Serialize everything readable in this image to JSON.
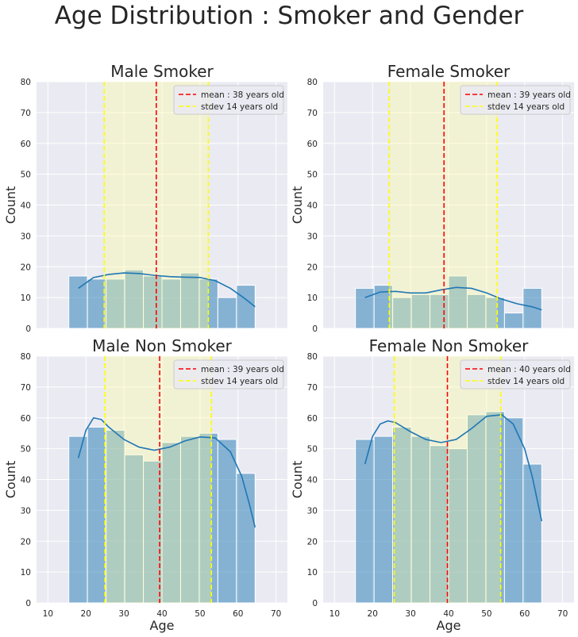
{
  "figure": {
    "title": "Age Distribution : Smoker and Gender"
  },
  "colors": {
    "hist": "#1f77b4",
    "kde": "#1f77b4",
    "mean_line": "#ff0000",
    "stdev_line": "#ffff00",
    "stdev_band": "#ffff9e",
    "axes_bg": "#eaeaf2",
    "grid": "#ffffff"
  },
  "chart_data": [
    {
      "type": "bar",
      "title": "Male Smoker",
      "xlabel": "",
      "ylabel": "Count",
      "xlim": [
        7,
        73
      ],
      "ylim": [
        0,
        80
      ],
      "xticks": [
        10,
        20,
        30,
        40,
        50,
        60,
        70
      ],
      "yticks": [
        0,
        10,
        20,
        30,
        40,
        50,
        60,
        70,
        80
      ],
      "show_xtick_labels": false,
      "bin_edges": [
        15.5,
        20.4,
        25.3,
        30.2,
        35.1,
        40.0,
        44.9,
        49.8,
        54.7,
        59.6,
        64.5
      ],
      "counts": [
        17,
        16,
        16,
        19,
        17,
        16,
        18,
        16,
        10,
        14
      ],
      "kde": {
        "x": [
          18,
          22,
          26,
          30,
          34,
          38,
          42,
          46,
          50,
          54,
          58,
          62,
          64.5
        ],
        "y": [
          13,
          16.5,
          17.5,
          18,
          17.8,
          17.2,
          16.8,
          16.6,
          16.5,
          15.5,
          13,
          9.5,
          7
        ]
      },
      "mean": 38.5,
      "stdev_low": 24.8,
      "stdev_high": 52.2,
      "legend": {
        "position": "upper-right",
        "mean_label": "mean : 38 years old",
        "stdev_label": "stdev 14 years old"
      },
      "grid": true
    },
    {
      "type": "bar",
      "title": "Female Smoker",
      "xlabel": "",
      "ylabel": "Count",
      "xlim": [
        7,
        73
      ],
      "ylim": [
        0,
        80
      ],
      "xticks": [
        10,
        20,
        30,
        40,
        50,
        60,
        70
      ],
      "yticks": [
        0,
        10,
        20,
        30,
        40,
        50,
        60,
        70,
        80
      ],
      "show_xtick_labels": false,
      "bin_edges": [
        15.5,
        20.4,
        25.3,
        30.2,
        35.1,
        40.0,
        44.9,
        49.8,
        54.7,
        59.6,
        64.5
      ],
      "counts": [
        13,
        14,
        10,
        11,
        11,
        17,
        11,
        10,
        5,
        13
      ],
      "kde": {
        "x": [
          18,
          22,
          26,
          30,
          34,
          38,
          42,
          46,
          50,
          54,
          58,
          62,
          64.5
        ],
        "y": [
          10,
          11.8,
          12,
          11.5,
          11.5,
          12.5,
          13.3,
          13,
          11.5,
          9.5,
          8,
          7,
          6
        ]
      },
      "mean": 38.8,
      "stdev_low": 24.4,
      "stdev_high": 52.8,
      "legend": {
        "position": "upper-right",
        "mean_label": "mean : 39 years old",
        "stdev_label": "stdev 14 years old"
      },
      "grid": true
    },
    {
      "type": "bar",
      "title": "Male Non Smoker",
      "xlabel": "Age",
      "ylabel": "Count",
      "xlim": [
        7,
        73
      ],
      "ylim": [
        0,
        80
      ],
      "xticks": [
        10,
        20,
        30,
        40,
        50,
        60,
        70
      ],
      "yticks": [
        0,
        10,
        20,
        30,
        40,
        50,
        60,
        70,
        80
      ],
      "show_xtick_labels": true,
      "bin_edges": [
        15.5,
        20.4,
        25.3,
        30.2,
        35.1,
        40.0,
        44.9,
        49.8,
        54.7,
        59.6,
        64.5
      ],
      "counts": [
        54,
        57,
        56,
        48,
        46,
        52,
        54,
        55,
        53,
        42
      ],
      "kde": {
        "x": [
          18,
          20,
          22,
          24,
          26,
          30,
          34,
          38,
          42,
          46,
          50,
          54,
          58,
          61,
          63,
          64.5
        ],
        "y": [
          47,
          56,
          60,
          59.5,
          57,
          53,
          50.5,
          49.5,
          50.5,
          52.5,
          53.8,
          53.5,
          49,
          41,
          32,
          24.5
        ]
      },
      "mean": 39.4,
      "stdev_low": 25.0,
      "stdev_high": 53.0,
      "legend": {
        "position": "upper-right",
        "mean_label": "mean : 39 years old",
        "stdev_label": "stdev 14 years old"
      },
      "grid": true
    },
    {
      "type": "bar",
      "title": "Female Non Smoker",
      "xlabel": "Age",
      "ylabel": "Count",
      "xlim": [
        7,
        73
      ],
      "ylim": [
        0,
        80
      ],
      "xticks": [
        10,
        20,
        30,
        40,
        50,
        60,
        70
      ],
      "yticks": [
        0,
        10,
        20,
        30,
        40,
        50,
        60,
        70,
        80
      ],
      "show_xtick_labels": true,
      "bin_edges": [
        15.5,
        20.4,
        25.3,
        30.2,
        35.1,
        40.0,
        44.9,
        49.8,
        54.7,
        59.6,
        64.5
      ],
      "counts": [
        53,
        54,
        57,
        54,
        51,
        50,
        61,
        62,
        60,
        45
      ],
      "kde": {
        "x": [
          18,
          20,
          22,
          24,
          26,
          30,
          34,
          38,
          42,
          46,
          50,
          54,
          57,
          60,
          62,
          64.5
        ],
        "y": [
          45,
          54,
          58,
          59,
          58.5,
          55.5,
          53,
          52,
          53,
          56.5,
          60.5,
          61,
          58,
          50,
          41,
          26.5
        ]
      },
      "mean": 39.7,
      "stdev_low": 25.7,
      "stdev_high": 53.7,
      "legend": {
        "position": "upper-right",
        "mean_label": "mean : 40 years old",
        "stdev_label": "stdev 14 years old"
      },
      "grid": true
    }
  ]
}
